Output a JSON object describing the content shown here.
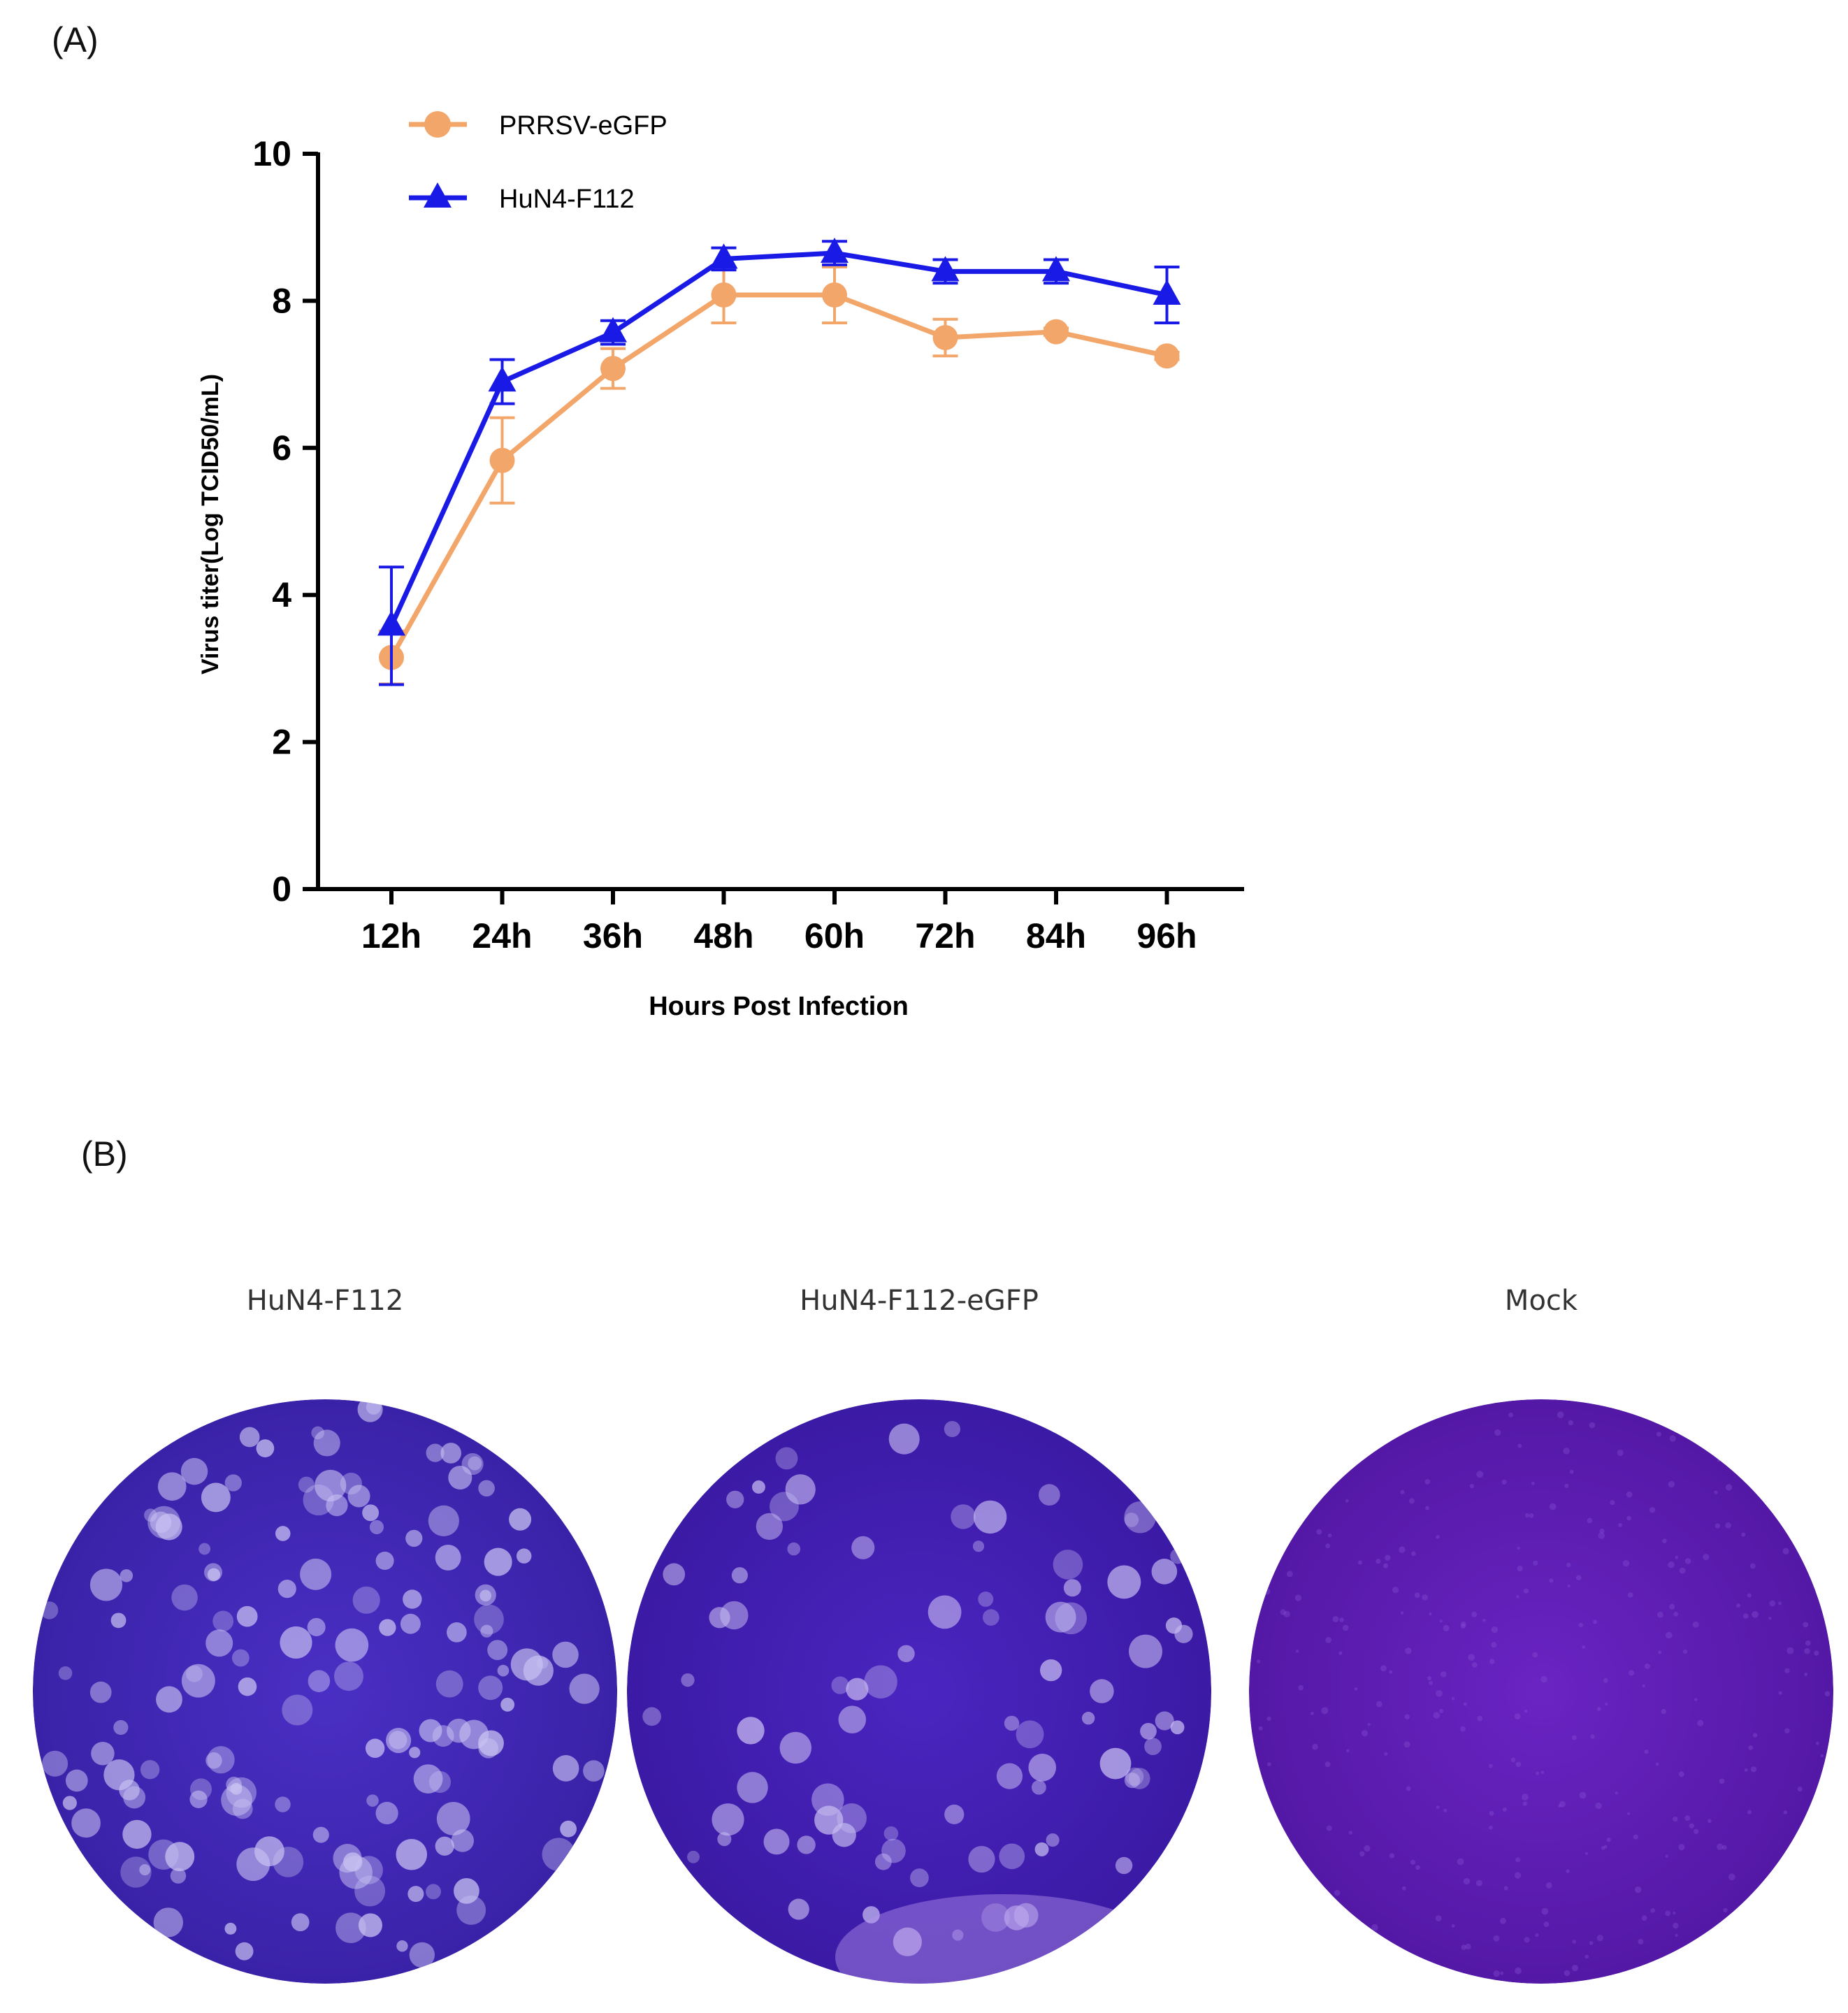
{
  "panel_a_label": "(A)",
  "panel_b_label": "(B)",
  "chart_data": {
    "type": "line",
    "title": "",
    "xlabel": "Hours Post Infection",
    "ylabel": "Virus titer(Log TCID50/mL)",
    "categories": [
      "12h",
      "24h",
      "36h",
      "48h",
      "60h",
      "72h",
      "84h",
      "96h"
    ],
    "ylim": [
      0,
      10
    ],
    "yticks": [
      0,
      2,
      4,
      6,
      8,
      10
    ],
    "legend_position": "top-left",
    "series": [
      {
        "name": "PRRSV-eGFP",
        "marker": "circle",
        "color": "#F2A66A",
        "values": [
          3.15,
          5.83,
          7.08,
          8.08,
          8.08,
          7.5,
          7.58,
          7.25
        ],
        "errors": [
          0.36,
          0.58,
          0.27,
          0.38,
          0.38,
          0.25,
          0.05,
          0.05
        ]
      },
      {
        "name": "HuN4-F112",
        "marker": "triangle",
        "color": "#1A1AE6",
        "values": [
          3.58,
          6.9,
          7.57,
          8.57,
          8.65,
          8.4,
          8.4,
          8.08
        ],
        "errors": [
          0.8,
          0.3,
          0.16,
          0.15,
          0.16,
          0.16,
          0.16,
          0.38
        ]
      }
    ]
  },
  "plaques": [
    {
      "title": "HuN4-F112",
      "base_color": "#4a2fc4",
      "edge_color": "#3a22a8",
      "spot_color": "#c9c3f2",
      "spots": "many"
    },
    {
      "title": "HuN4-F112-eGFP",
      "base_color": "#4b25c0",
      "edge_color": "#3b1aa5",
      "spot_color": "#c6bcf0",
      "spots": "medium"
    },
    {
      "title": "Mock",
      "base_color": "#6a24c2",
      "edge_color": "#5418a6",
      "spot_color": "#8a55d8",
      "spots": "none"
    }
  ]
}
